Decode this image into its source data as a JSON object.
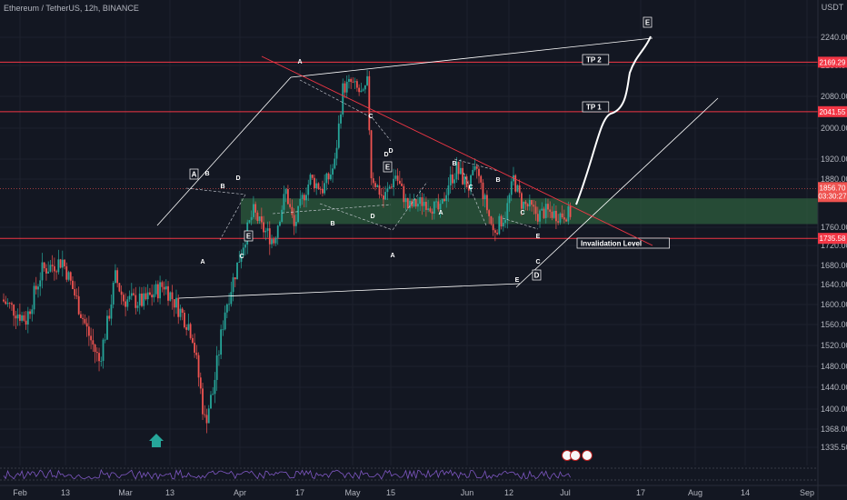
{
  "chart_data": {
    "type": "candlestick",
    "title": "Ethereum / TetherUS, 12h, BINANCE",
    "y_unit": "USDT",
    "ylim": [
      1300,
      2330
    ],
    "y_ticks": [
      2240,
      2160,
      2080,
      2000,
      1920,
      1880,
      1760,
      1720,
      1680,
      1640,
      1600,
      1560,
      1520,
      1480,
      1440,
      1400,
      1368,
      1335.5
    ],
    "y_tick_labels": [
      "2240.00",
      "2160.00",
      "2080.00",
      "2000.00",
      "1920.00",
      "1880.00",
      "1760.00",
      "1720.00",
      "1680.00",
      "1640.00",
      "1600.00",
      "1560.00",
      "1520.00",
      "1480.00",
      "1440.00",
      "1400.00",
      "1368.00",
      "1335.50"
    ],
    "x_ticks": [
      "Feb",
      "13",
      "Mar",
      "13",
      "Apr",
      "17",
      "May",
      "15",
      "Jun",
      "12",
      "Jul",
      "17",
      "Aug",
      "14",
      "Sep"
    ],
    "price_anchors": {
      "days": [
        0,
        6,
        10,
        15,
        18,
        21,
        24,
        26,
        28,
        30,
        35,
        40,
        46,
        47,
        50,
        52,
        55,
        59,
        62,
        64,
        67,
        70,
        72,
        74,
        76,
        79,
        82,
        84,
        86,
        89,
        90,
        91,
        94,
        97,
        100,
        104,
        108,
        110,
        112,
        115,
        117,
        121,
        124,
        126,
        128,
        130,
        132,
        134,
        137,
        140
      ],
      "prices": [
        1610,
        1570,
        1670,
        1690,
        1620,
        1550,
        1490,
        1560,
        1655,
        1610,
        1605,
        1640,
        1560,
        1540,
        1380,
        1430,
        1590,
        1710,
        1800,
        1760,
        1730,
        1850,
        1760,
        1830,
        1880,
        1855,
        1910,
        2100,
        2115,
        2080,
        2115,
        1890,
        1830,
        1890,
        1810,
        1825,
        1800,
        1870,
        1900,
        1860,
        1900,
        1750,
        1790,
        1880,
        1820,
        1810,
        1790,
        1800,
        1790,
        1795
      ]
    },
    "support_zone": [
      1768,
      1832
    ],
    "levels": [
      {
        "label": "TP 2",
        "price_tag": "2169.29",
        "value": 2169.29
      },
      {
        "label": "TP 1",
        "price_tag": "2041.55",
        "value": 2041.55
      },
      {
        "label": "Invalidation Level",
        "price_tag": "1735.58",
        "value": 1735.58
      }
    ],
    "last_price": {
      "value": "1856.70",
      "countdown": "03:30:27"
    },
    "wave_labels": [
      "A",
      "B",
      "C",
      "D",
      "E",
      "A",
      "B",
      "C",
      "D",
      "E",
      "A",
      "B",
      "C",
      "D",
      "E",
      "A",
      "B",
      "C",
      "D",
      "E",
      "A",
      "B",
      "C",
      "D",
      "E"
    ],
    "colors": {
      "up": "#26a69a",
      "down": "#ef5350",
      "level": "#f23645",
      "zone": "#2e5e3e"
    }
  }
}
